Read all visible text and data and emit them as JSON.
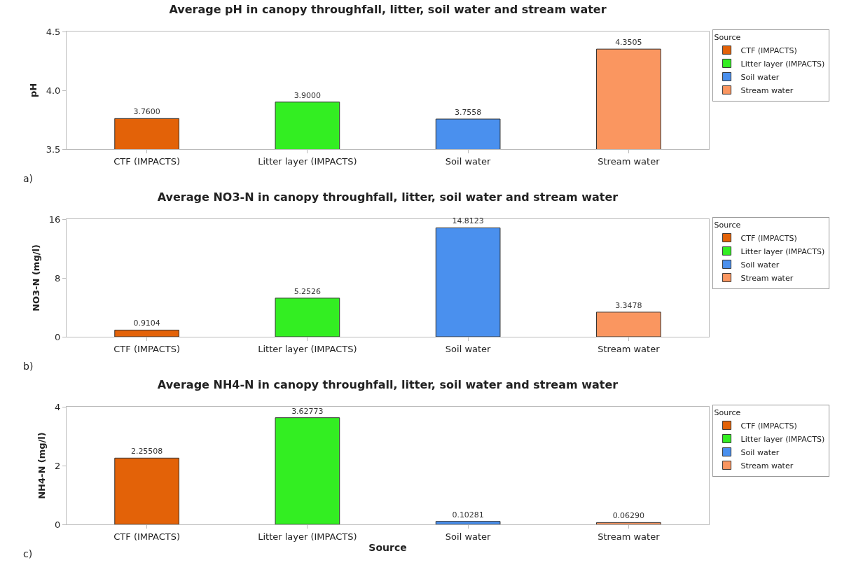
{
  "chart_data": [
    {
      "type": "bar",
      "title": "Average pH in canopy throughfall, litter, soil water and stream water",
      "ylabel": "pH",
      "legend_title": "Source",
      "legend": "top right",
      "categories": [
        "CTF (IMPACTS)",
        "Litter layer (IMPACTS)",
        "Soil water",
        "Stream water"
      ],
      "series": [
        {
          "name": "CTF (IMPACTS)",
          "color": "#e36208",
          "values": [
            3.76,
            null,
            null,
            null
          ],
          "value_labels": [
            "3.7600",
            null,
            null,
            null
          ]
        },
        {
          "name": "Litter layer (IMPACTS)",
          "color": "#33ee22",
          "values": [
            null,
            3.9,
            null,
            null
          ],
          "value_labels": [
            null,
            "3.9000",
            null,
            null
          ]
        },
        {
          "name": "Soil water",
          "color": "#4a90ee",
          "values": [
            null,
            null,
            3.7558,
            null
          ],
          "value_labels": [
            null,
            null,
            "3.7558",
            null
          ]
        },
        {
          "name": "Stream water",
          "color": "#fa9660",
          "values": [
            null,
            null,
            null,
            4.3505
          ],
          "value_labels": [
            null,
            null,
            null,
            "4.3505"
          ]
        }
      ],
      "ylim": [
        3.5,
        4.5
      ],
      "yticks": [
        3.5,
        {
          "value": 4,
          "label": "4.0"
        },
        4.5
      ],
      "grid": false,
      "annotations": [
        "a)"
      ]
    },
    {
      "type": "bar",
      "title": "Average NO3-N in canopy throughfall, litter, soil water and stream water",
      "ylabel": "NO3-N (mg/l)",
      "legend_title": "Source",
      "legend": "top right",
      "categories": [
        "CTF (IMPACTS)",
        "Litter layer (IMPACTS)",
        "Soil water",
        "Stream water"
      ],
      "series": [
        {
          "name": "CTF (IMPACTS)",
          "color": "#e36208",
          "values": [
            0.9104,
            null,
            null,
            null
          ],
          "value_labels": [
            "0.9104",
            null,
            null,
            null
          ]
        },
        {
          "name": "Litter layer (IMPACTS)",
          "color": "#33ee22",
          "values": [
            null,
            5.2526,
            null,
            null
          ],
          "value_labels": [
            null,
            "5.2526",
            null,
            null
          ]
        },
        {
          "name": "Soil water",
          "color": "#4a90ee",
          "values": [
            null,
            null,
            14.8123,
            null
          ],
          "value_labels": [
            null,
            null,
            "14.8123",
            null
          ]
        },
        {
          "name": "Stream water",
          "color": "#fa9660",
          "values": [
            null,
            null,
            null,
            3.3478
          ],
          "value_labels": [
            null,
            null,
            null,
            "3.3478"
          ]
        }
      ],
      "ylim": [
        0,
        16
      ],
      "yticks": [
        0,
        8,
        16
      ],
      "grid": false,
      "annotations": [
        "b)"
      ]
    },
    {
      "type": "bar",
      "title": "Average NH4-N in canopy throughfall, litter, soil water and stream water",
      "xlabel": "Source",
      "ylabel": "NH4-N (mg/l)",
      "legend_title": "Source",
      "legend": "top right",
      "categories": [
        "CTF (IMPACTS)",
        "Litter layer (IMPACTS)",
        "Soil water",
        "Stream water"
      ],
      "series": [
        {
          "name": "CTF (IMPACTS)",
          "color": "#e36208",
          "values": [
            2.25508,
            null,
            null,
            null
          ],
          "value_labels": [
            "2.25508",
            null,
            null,
            null
          ]
        },
        {
          "name": "Litter layer (IMPACTS)",
          "color": "#33ee22",
          "values": [
            null,
            3.62773,
            null,
            null
          ],
          "value_labels": [
            null,
            "3.62773",
            null,
            null
          ]
        },
        {
          "name": "Soil water",
          "color": "#4a90ee",
          "values": [
            null,
            null,
            0.10281,
            null
          ],
          "value_labels": [
            null,
            null,
            "0.10281",
            null
          ]
        },
        {
          "name": "Stream water",
          "color": "#fa9660",
          "values": [
            null,
            null,
            null,
            0.0629
          ],
          "value_labels": [
            null,
            null,
            null,
            "0.06290"
          ]
        }
      ],
      "ylim": [
        0,
        4
      ],
      "yticks": [
        0,
        2,
        4
      ],
      "grid": false,
      "annotations": [
        "c)"
      ]
    }
  ]
}
